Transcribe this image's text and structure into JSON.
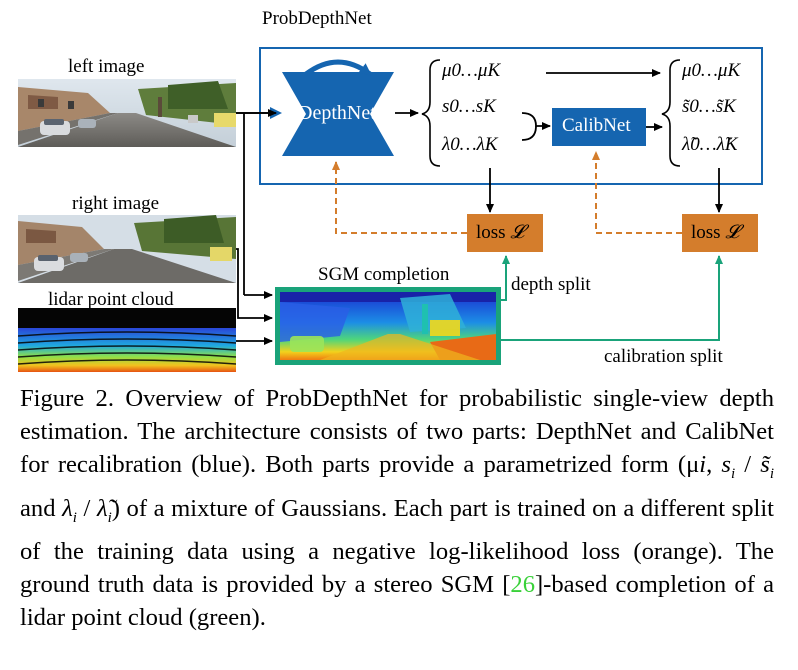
{
  "figure": {
    "title": "ProbDepthNet",
    "left_image_label": "left image",
    "right_image_label": "right image",
    "lidar_label": "lidar point cloud",
    "sgm_label": "SGM completion",
    "depthnet_label": "DepthNet",
    "calibnet_label": "CalibNet",
    "loss_label": "loss",
    "loss_symbol": "𝓛",
    "depth_split_label": "depth split",
    "calibration_split_label": "calibration split",
    "params_depthnet": [
      "μ0…μK",
      "s0…sK",
      "λ0…λK"
    ],
    "params_calibnet": [
      "μ0…μK",
      "s̃0…s̃K",
      "λ̃0…λ̃K"
    ],
    "colors": {
      "blue": "#1565b0",
      "orange": "#d47d2c",
      "green": "#1aa37a"
    }
  },
  "caption": {
    "figure_label": "Figure 2.",
    "text_1": "Overview of ProbDepthNet for probabilistic single-view depth estimation. The architecture consists of two parts: DepthNet and CalibNet for recalibration (blue). Both parts provide a parametrized form (μ",
    "text_2": "of a mixture of Gaussians. Each part is trained on a different split of the training data using a negative log-likelihood loss (orange). The ground truth data is provided by a stereo SGM [",
    "citation": "26",
    "text_3": "]-based completion of a lidar point cloud (green)."
  }
}
